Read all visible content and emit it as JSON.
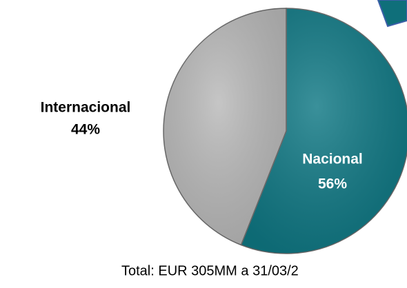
{
  "chart_data": {
    "type": "pie",
    "categories": [
      "Nacional",
      "Internacional"
    ],
    "values": [
      56,
      44
    ],
    "value_labels": [
      "56%",
      "44%"
    ],
    "colors": [
      "#0f7884",
      "#b9b9b9"
    ],
    "caption": "Total: EUR 305MM a 31/03/2"
  }
}
